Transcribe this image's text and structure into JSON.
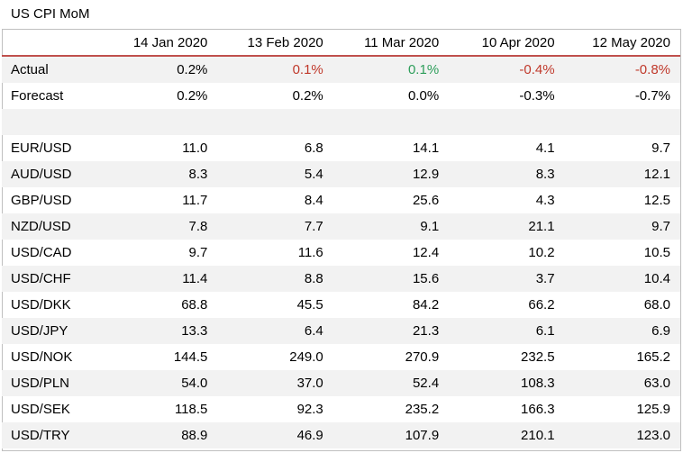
{
  "title": "US CPI MoM",
  "columns": [
    "14 Jan 2020",
    "13 Feb 2020",
    "11 Mar 2020",
    "10 Apr 2020",
    "12 May 2020"
  ],
  "actual": {
    "label": "Actual",
    "values": [
      "0.2%",
      "0.1%",
      "0.1%",
      "-0.4%",
      "-0.8%"
    ],
    "colors": [
      "#000000",
      "#c0392b",
      "#2e9e5b",
      "#c0392b",
      "#c0392b"
    ]
  },
  "forecast": {
    "label": "Forecast",
    "values": [
      "0.2%",
      "0.2%",
      "0.0%",
      "-0.3%",
      "-0.7%"
    ]
  },
  "pairs": [
    {
      "name": "EUR/USD",
      "values": [
        "11.0",
        "6.8",
        "14.1",
        "4.1",
        "9.7"
      ]
    },
    {
      "name": "AUD/USD",
      "values": [
        "8.3",
        "5.4",
        "12.9",
        "8.3",
        "12.1"
      ]
    },
    {
      "name": "GBP/USD",
      "values": [
        "11.7",
        "8.4",
        "25.6",
        "4.3",
        "12.5"
      ]
    },
    {
      "name": "NZD/USD",
      "values": [
        "7.8",
        "7.7",
        "9.1",
        "21.1",
        "9.7"
      ]
    },
    {
      "name": "USD/CAD",
      "values": [
        "9.7",
        "11.6",
        "12.4",
        "10.2",
        "10.5"
      ]
    },
    {
      "name": "USD/CHF",
      "values": [
        "11.4",
        "8.8",
        "15.6",
        "3.7",
        "10.4"
      ]
    },
    {
      "name": "USD/DKK",
      "values": [
        "68.8",
        "45.5",
        "84.2",
        "66.2",
        "68.0"
      ]
    },
    {
      "name": "USD/JPY",
      "values": [
        "13.3",
        "6.4",
        "21.3",
        "6.1",
        "6.9"
      ]
    },
    {
      "name": "USD/NOK",
      "values": [
        "144.5",
        "249.0",
        "270.9",
        "232.5",
        "165.2"
      ]
    },
    {
      "name": "USD/PLN",
      "values": [
        "54.0",
        "37.0",
        "52.4",
        "108.3",
        "63.0"
      ]
    },
    {
      "name": "USD/SEK",
      "values": [
        "118.5",
        "92.3",
        "235.2",
        "166.3",
        "125.9"
      ]
    },
    {
      "name": "USD/TRY",
      "values": [
        "88.9",
        "46.9",
        "107.9",
        "210.1",
        "123.0"
      ]
    }
  ]
}
